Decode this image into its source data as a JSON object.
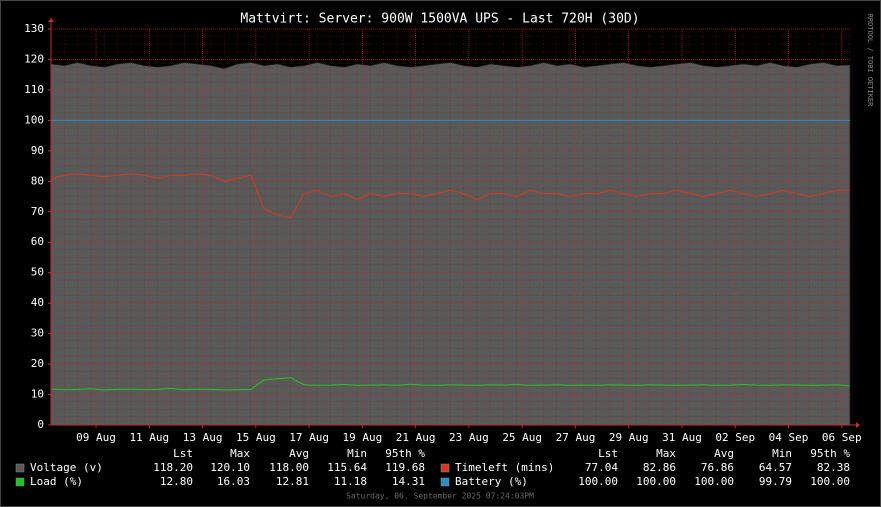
{
  "chart_data": {
    "type": "line",
    "title": "Mattvirt: Server: 900W 1500VA UPS - Last 720H (30D)",
    "footer": "Saturday, 06. September 2025 07:24:03PM",
    "watermark": "RRDTOOL / TOBI OETIKER",
    "x": [
      0,
      12,
      24,
      36,
      48,
      60,
      72,
      84,
      96,
      108,
      120,
      132,
      144,
      156,
      168,
      180,
      192,
      204,
      216,
      228,
      240,
      252,
      264,
      276,
      288,
      300,
      312,
      324,
      336,
      348,
      360,
      372,
      384,
      396,
      408,
      420,
      432,
      444,
      456,
      468,
      480,
      492,
      504,
      516,
      528,
      540,
      552,
      564,
      576,
      588,
      600,
      612,
      624,
      636,
      648,
      660,
      672,
      684,
      696,
      708,
      720
    ],
    "xlim": [
      0,
      720
    ],
    "xticks": [
      {
        "value": 40.6,
        "label": "09 Aug"
      },
      {
        "value": 88.6,
        "label": "11 Aug"
      },
      {
        "value": 136.6,
        "label": "13 Aug"
      },
      {
        "value": 184.6,
        "label": "15 Aug"
      },
      {
        "value": 232.6,
        "label": "17 Aug"
      },
      {
        "value": 280.6,
        "label": "19 Aug"
      },
      {
        "value": 328.6,
        "label": "21 Aug"
      },
      {
        "value": 376.6,
        "label": "23 Aug"
      },
      {
        "value": 424.6,
        "label": "25 Aug"
      },
      {
        "value": 472.6,
        "label": "27 Aug"
      },
      {
        "value": 520.6,
        "label": "29 Aug"
      },
      {
        "value": 568.6,
        "label": "31 Aug"
      },
      {
        "value": 616.6,
        "label": "02 Sep"
      },
      {
        "value": 664.6,
        "label": "04 Sep"
      },
      {
        "value": 712.6,
        "label": "06 Sep"
      }
    ],
    "ylim": [
      0,
      130
    ],
    "yticks": [
      0,
      10,
      20,
      30,
      40,
      50,
      60,
      70,
      80,
      90,
      100,
      110,
      120,
      130
    ],
    "grid": true,
    "stat_headers": [
      "Lst",
      "Max",
      "Avg",
      "Min",
      "95th %"
    ],
    "series": [
      {
        "name": "Voltage (v)",
        "color": "#595959",
        "area": true,
        "stats": [
          "118.20",
          "120.10",
          "118.00",
          "115.64",
          "119.68"
        ],
        "values": [
          118.5,
          118,
          119,
          118,
          117.5,
          118.5,
          119,
          118,
          117.5,
          118,
          119,
          118.5,
          118,
          117,
          118.5,
          119,
          118,
          118.5,
          117.5,
          118,
          119,
          118,
          117.5,
          118.5,
          118,
          119,
          118,
          117.5,
          118,
          118.5,
          119,
          118,
          117.5,
          118.5,
          118,
          117.5,
          118,
          119,
          118,
          118.5,
          117.5,
          118,
          118.5,
          119,
          118,
          117.5,
          118,
          118.5,
          119,
          118,
          117.5,
          118,
          118.5,
          118,
          119,
          118,
          117.5,
          118.5,
          119,
          118,
          118.2
        ]
      },
      {
        "name": "Timeleft (mins)",
        "color": "#d23a1e",
        "stats": [
          "77.04",
          "82.86",
          "76.86",
          "64.57",
          "82.38"
        ],
        "values": [
          81,
          82,
          82.5,
          82,
          81.5,
          82,
          82.5,
          82,
          81,
          82,
          82,
          82.5,
          82,
          80,
          81,
          82,
          71,
          69,
          68,
          76,
          77,
          75,
          76,
          74,
          76,
          75,
          76,
          76,
          75,
          76,
          77,
          76,
          74,
          76,
          76,
          75,
          77,
          76,
          76,
          75,
          76,
          76,
          77,
          76,
          75,
          76,
          76,
          77,
          76,
          75,
          76,
          77,
          76,
          75,
          76,
          77,
          76,
          75,
          76,
          77,
          77.04
        ]
      },
      {
        "name": "Load (%)",
        "color": "#22c422",
        "stats": [
          "12.80",
          "16.03",
          "12.81",
          "11.18",
          "14.31"
        ],
        "values": [
          11.8,
          11.6,
          11.7,
          11.9,
          11.5,
          11.7,
          11.8,
          11.6,
          11.7,
          12,
          11.6,
          11.8,
          11.7,
          11.5,
          11.6,
          11.7,
          14.8,
          15.2,
          15.5,
          13.2,
          13,
          13.1,
          13.3,
          13,
          13.1,
          13.2,
          13,
          13.4,
          13.1,
          13,
          13.2,
          13.1,
          13,
          13.2,
          13.1,
          13.3,
          13,
          13.1,
          13.2,
          13,
          13.1,
          13,
          13.2,
          13.1,
          13,
          13.2,
          13.1,
          13,
          13.1,
          13.2,
          13,
          13.1,
          13.3,
          13.1,
          13,
          13.2,
          13.1,
          13,
          13.1,
          13.2,
          12.8
        ]
      },
      {
        "name": "Battery (%)",
        "color": "#2a8fc8",
        "stats": [
          "100.00",
          "100.00",
          "100.00",
          "99.79",
          "100.00"
        ],
        "values": [
          100,
          100,
          100,
          100,
          100,
          100,
          100,
          100,
          100,
          100,
          100,
          100,
          100,
          100,
          100,
          100,
          100,
          100,
          100,
          100,
          100,
          100,
          100,
          100,
          100,
          100,
          100,
          100,
          100,
          100,
          100,
          100,
          100,
          100,
          100,
          100,
          100,
          100,
          100,
          100,
          100,
          100,
          100,
          100,
          100,
          100,
          100,
          100,
          100,
          100,
          100,
          100,
          100,
          100,
          100,
          100,
          100,
          100,
          100,
          100,
          100
        ]
      }
    ]
  }
}
